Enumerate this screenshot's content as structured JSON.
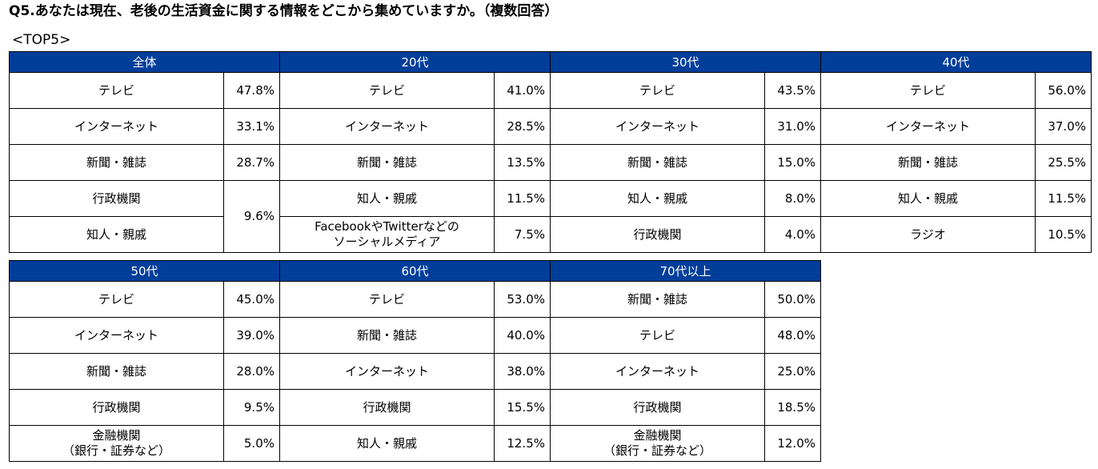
{
  "question": "Q5.あなたは現在、老後の生活資金に関する情報をどこから集めていますか。（複数回答）",
  "subtitle": "<TOP5>",
  "table_top": {
    "groups": [
      {
        "header": "全体",
        "rows": [
          {
            "label": "テレビ",
            "value": "47.8%"
          },
          {
            "label": "インターネット",
            "value": "33.1%"
          },
          {
            "label": "新聞・雑誌",
            "value": "28.7%"
          },
          {
            "label": "行政機関",
            "value": "9.6%"
          },
          {
            "label": "知人・親戚",
            "value": ""
          }
        ]
      },
      {
        "header": "20代",
        "rows": [
          {
            "label": "テレビ",
            "value": "41.0%"
          },
          {
            "label": "インターネット",
            "value": "28.5%"
          },
          {
            "label": "新聞・雑誌",
            "value": "13.5%"
          },
          {
            "label": "知人・親戚",
            "value": "11.5%"
          },
          {
            "label": "FacebookやTwitterなどの",
            "label2": "ソーシャルメディア",
            "value": "7.5%"
          }
        ]
      },
      {
        "header": "30代",
        "rows": [
          {
            "label": "テレビ",
            "value": "43.5%"
          },
          {
            "label": "インターネット",
            "value": "31.0%"
          },
          {
            "label": "新聞・雑誌",
            "value": "15.0%"
          },
          {
            "label": "知人・親戚",
            "value": "8.0%"
          },
          {
            "label": "行政機関",
            "value": "4.0%"
          }
        ]
      },
      {
        "header": "40代",
        "rows": [
          {
            "label": "テレビ",
            "value": "56.0%"
          },
          {
            "label": "インターネット",
            "value": "37.0%"
          },
          {
            "label": "新聞・雑誌",
            "value": "25.5%"
          },
          {
            "label": "知人・親戚",
            "value": "11.5%"
          },
          {
            "label": "ラジオ",
            "value": "10.5%"
          }
        ]
      }
    ]
  },
  "table_bottom": {
    "groups": [
      {
        "header": "50代",
        "rows": [
          {
            "label": "テレビ",
            "value": "45.0%"
          },
          {
            "label": "インターネット",
            "value": "39.0%"
          },
          {
            "label": "新聞・雑誌",
            "value": "28.0%"
          },
          {
            "label": "行政機関",
            "value": "9.5%"
          },
          {
            "label": "金融機関",
            "label2": "（銀行・証券など）",
            "value": "5.0%"
          }
        ]
      },
      {
        "header": "60代",
        "rows": [
          {
            "label": "テレビ",
            "value": "53.0%"
          },
          {
            "label": "新聞・雑誌",
            "value": "40.0%"
          },
          {
            "label": "インターネット",
            "value": "38.0%"
          },
          {
            "label": "行政機関",
            "value": "15.5%"
          },
          {
            "label": "知人・親戚",
            "value": "12.5%"
          }
        ]
      },
      {
        "header": "70代以上",
        "rows": [
          {
            "label": "新聞・雑誌",
            "value": "50.0%"
          },
          {
            "label": "テレビ",
            "value": "48.0%"
          },
          {
            "label": "インターネット",
            "value": "25.0%"
          },
          {
            "label": "行政機関",
            "value": "18.5%"
          },
          {
            "label": "金融機関",
            "label2": "（銀行・証券など）",
            "value": "12.0%"
          }
        ]
      }
    ]
  },
  "colors": {
    "header_bg": "#003e9a",
    "header_text": "#ffffff",
    "border": "#000000"
  }
}
